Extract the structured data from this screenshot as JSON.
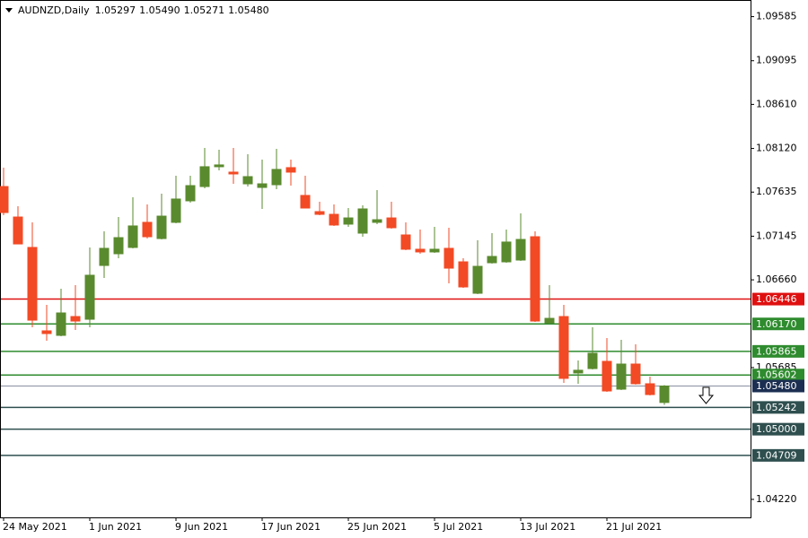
{
  "chart_data": {
    "type": "candlestick",
    "title": "AUDNZD,Daily",
    "header_values": [
      "1.05297",
      "1.05490",
      "1.05271",
      "1.05480"
    ],
    "categories": [
      "24 May 2021",
      null,
      null,
      null,
      null,
      null,
      "1 Jun 2021",
      null,
      null,
      null,
      null,
      null,
      "9 Jun 2021",
      null,
      null,
      null,
      null,
      null,
      "17 Jun 2021",
      null,
      null,
      null,
      null,
      null,
      "25 Jun 2021",
      null,
      null,
      null,
      null,
      null,
      "5 Jul 2021",
      null,
      null,
      null,
      null,
      null,
      "13 Jul 2021",
      null,
      null,
      null,
      null,
      null,
      "21 Jul 2021",
      null,
      null,
      null,
      null
    ],
    "open": [
      1.07697,
      1.07358,
      1.0702,
      1.06093,
      1.06043,
      1.06252,
      1.06222,
      1.0682,
      1.0695,
      1.0702,
      1.07299,
      1.07119,
      1.07299,
      1.07538,
      1.07697,
      1.07917,
      1.07857,
      1.07727,
      1.07687,
      1.07717,
      1.07907,
      1.07598,
      1.07418,
      1.07388,
      1.07279,
      1.07179,
      1.07299,
      1.07348,
      1.07159,
      1.07,
      1.0697,
      1.0701,
      1.0686,
      1.06511,
      1.0685,
      1.0686,
      1.0688,
      1.07139,
      1.06182,
      1.06252,
      1.05625,
      1.05674,
      1.05754,
      1.05445,
      1.05724,
      1.05505,
      1.05297
    ],
    "high": [
      1.07907,
      1.07478,
      1.07299,
      1.06382,
      1.06561,
      1.06601,
      1.0702,
      1.07199,
      1.07358,
      1.07578,
      1.07498,
      1.07617,
      1.07817,
      1.07817,
      1.08126,
      1.08106,
      1.08126,
      1.08056,
      1.07996,
      1.08116,
      1.07996,
      1.07817,
      1.07528,
      1.07498,
      1.07458,
      1.07488,
      1.07657,
      1.07528,
      1.07299,
      1.07219,
      1.07249,
      1.07239,
      1.069,
      1.071,
      1.07179,
      1.07219,
      1.07398,
      1.07199,
      1.06601,
      1.06382,
      1.05764,
      1.06133,
      1.06013,
      1.05993,
      1.05943,
      1.05585,
      1.0549
    ],
    "low": [
      1.07378,
      1.07059,
      1.06133,
      1.05983,
      1.06033,
      1.06103,
      1.06133,
      1.06681,
      1.069,
      1.0701,
      1.07119,
      1.07109,
      1.07289,
      1.07518,
      1.07677,
      1.07877,
      1.07727,
      1.07697,
      1.07448,
      1.07667,
      1.07707,
      1.07458,
      1.07378,
      1.07259,
      1.07249,
      1.07139,
      1.07279,
      1.07229,
      1.0699,
      1.0695,
      1.0696,
      1.06621,
      1.06571,
      1.06501,
      1.0684,
      1.0685,
      1.0687,
      1.06192,
      1.06172,
      1.05515,
      1.05505,
      1.05664,
      1.05415,
      1.05435,
      1.05495,
      1.05375,
      1.05271
    ],
    "close": [
      1.07408,
      1.07059,
      1.06212,
      1.06063,
      1.06292,
      1.06202,
      1.06711,
      1.0701,
      1.07129,
      1.07259,
      1.07139,
      1.07368,
      1.07558,
      1.07707,
      1.07917,
      1.07937,
      1.07837,
      1.07807,
      1.07727,
      1.07887,
      1.07857,
      1.07458,
      1.07388,
      1.07269,
      1.07348,
      1.07448,
      1.07328,
      1.07239,
      1.07,
      1.0697,
      1.07,
      1.0679,
      1.06581,
      1.0681,
      1.0692,
      1.0708,
      1.07109,
      1.06202,
      1.06232,
      1.05565,
      1.05655,
      1.05844,
      1.05425,
      1.05724,
      1.05505,
      1.05385,
      1.0548
    ],
    "up_color": "#5a8a2e",
    "down_color": "#f24a25",
    "ylim": [
      1.0402,
      1.0977
    ],
    "yticks": [
      1.09585,
      1.09095,
      {
        "value": 1.0861,
        "label": "1.08610"
      },
      {
        "value": 1.0812,
        "label": "1.08120"
      },
      1.07635,
      1.07145,
      {
        "value": 1.0666,
        "label": "1.06660"
      },
      1.05685,
      {
        "value": 1.0422,
        "label": "1.04220"
      }
    ],
    "levels": [
      {
        "value": 1.06446,
        "label": "1.06446",
        "color": "#e01010"
      },
      {
        "value": 1.0617,
        "label": "1.06170",
        "color": "#2e8b2e"
      },
      {
        "value": 1.05865,
        "label": "1.05865",
        "color": "#2e8b2e"
      },
      {
        "value": 1.05602,
        "label": "1.05602",
        "color": "#2e8b2e"
      },
      {
        "value": 1.0548,
        "label": "1.05480",
        "color": "#1c2f52"
      },
      {
        "value": 1.05242,
        "label": "1.05242",
        "color": "#2f4f4f"
      },
      {
        "value": 1.05,
        "label": "1.05000",
        "color": "#2f4f4f"
      },
      {
        "value": 1.04709,
        "label": "1.04709",
        "color": "#2f4f4f"
      }
    ]
  }
}
